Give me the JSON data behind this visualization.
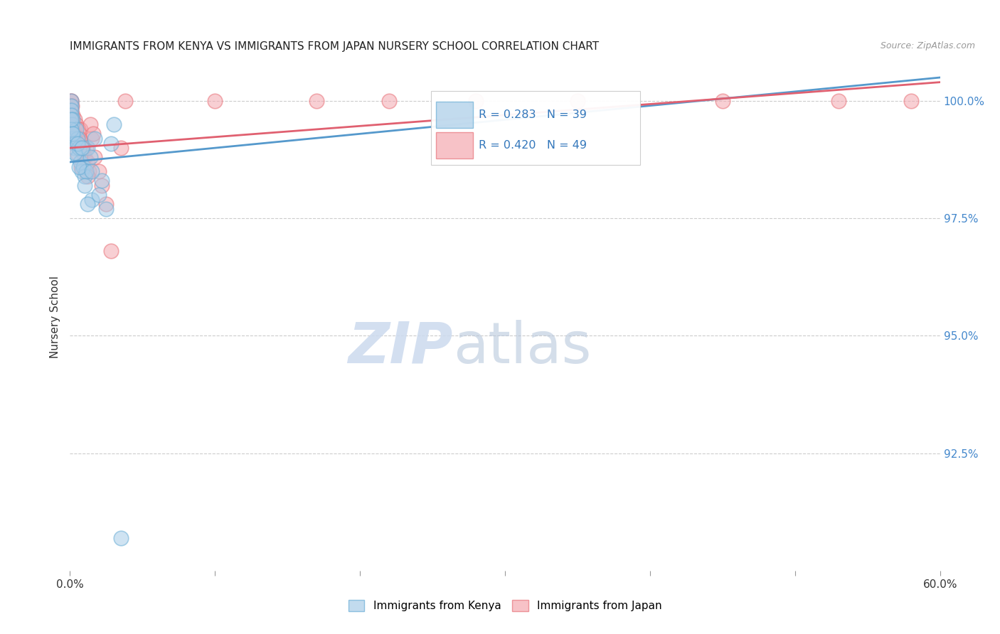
{
  "title": "IMMIGRANTS FROM KENYA VS IMMIGRANTS FROM JAPAN NURSERY SCHOOL CORRELATION CHART",
  "source": "Source: ZipAtlas.com",
  "ylabel": "Nursery School",
  "ytick_values": [
    100.0,
    97.5,
    95.0,
    92.5
  ],
  "xmin": 0.0,
  "xmax": 60.0,
  "ymin": 90.0,
  "ymax": 100.8,
  "kenya_color": "#a8cce8",
  "japan_color": "#f4a8b0",
  "kenya_edge_color": "#6aaed6",
  "japan_edge_color": "#e8737a",
  "kenya_line_color": "#5599cc",
  "japan_line_color": "#e06070",
  "legend_kenya": "Immigrants from Kenya",
  "legend_japan": "Immigrants from Japan",
  "r_kenya": 0.283,
  "n_kenya": 39,
  "r_japan": 0.42,
  "n_japan": 49,
  "kenya_x": [
    0.1,
    0.1,
    0.1,
    0.1,
    0.15,
    0.15,
    0.2,
    0.2,
    0.3,
    0.3,
    0.4,
    0.5,
    0.5,
    0.6,
    0.7,
    0.8,
    0.9,
    1.0,
    1.1,
    1.2,
    1.4,
    1.5,
    1.7,
    2.0,
    2.2,
    2.8,
    3.0,
    0.1,
    0.1,
    0.2,
    0.3,
    0.5,
    0.6,
    0.8,
    1.0,
    1.2,
    1.5,
    2.5,
    3.5
  ],
  "kenya_y": [
    100.0,
    99.9,
    99.8,
    99.7,
    99.5,
    99.3,
    99.6,
    99.2,
    99.1,
    99.0,
    99.4,
    99.2,
    98.8,
    99.0,
    98.7,
    98.5,
    98.6,
    98.4,
    98.5,
    99.0,
    98.8,
    97.9,
    99.2,
    98.0,
    98.3,
    99.1,
    99.5,
    99.4,
    99.6,
    99.3,
    98.9,
    99.1,
    98.6,
    99.0,
    98.2,
    97.8,
    98.5,
    97.7,
    90.7
  ],
  "japan_x": [
    0.1,
    0.1,
    0.1,
    0.1,
    0.15,
    0.2,
    0.2,
    0.3,
    0.3,
    0.4,
    0.4,
    0.5,
    0.5,
    0.6,
    0.6,
    0.7,
    0.8,
    0.9,
    1.0,
    1.1,
    1.2,
    1.3,
    1.5,
    1.7,
    2.0,
    2.5,
    0.15,
    0.25,
    0.35,
    0.45,
    0.55,
    0.65,
    0.75,
    0.85,
    1.2,
    1.4,
    1.6,
    2.2,
    2.8,
    3.5,
    3.8,
    10.0,
    17.0,
    22.0,
    28.0,
    35.0,
    45.0,
    53.0,
    58.0
  ],
  "japan_y": [
    100.0,
    100.0,
    99.9,
    99.8,
    99.9,
    99.7,
    99.5,
    99.6,
    99.4,
    99.5,
    99.3,
    99.2,
    99.1,
    99.0,
    99.2,
    99.4,
    99.1,
    98.9,
    98.8,
    99.0,
    98.7,
    98.5,
    99.2,
    98.8,
    98.5,
    97.8,
    99.6,
    99.3,
    99.1,
    98.9,
    99.4,
    99.2,
    98.6,
    99.0,
    98.4,
    99.5,
    99.3,
    98.2,
    96.8,
    99.0,
    100.0,
    100.0,
    100.0,
    100.0,
    100.0,
    100.0,
    100.0,
    100.0,
    100.0
  ],
  "line_kenya_x0": 0.0,
  "line_kenya_x1": 60.0,
  "line_kenya_y0": 98.7,
  "line_kenya_y1": 100.5,
  "line_japan_x0": 0.0,
  "line_japan_x1": 60.0,
  "line_japan_y0": 99.0,
  "line_japan_y1": 100.4
}
